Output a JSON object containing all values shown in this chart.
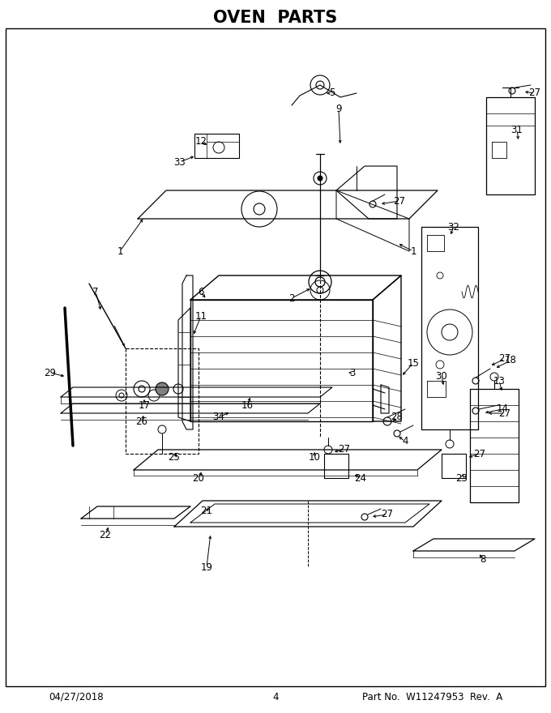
{
  "title": "OVEN  PARTS",
  "title_fontsize": 15,
  "title_fontweight": "bold",
  "footer_left": "04/27/2018",
  "footer_center": "4",
  "footer_right": "Part No.  W11247953  Rev.  A",
  "footer_fontsize": 8.5,
  "bg_color": "#ffffff",
  "fig_width": 6.8,
  "fig_height": 8.8,
  "dpi": 100,
  "lw": 0.7
}
